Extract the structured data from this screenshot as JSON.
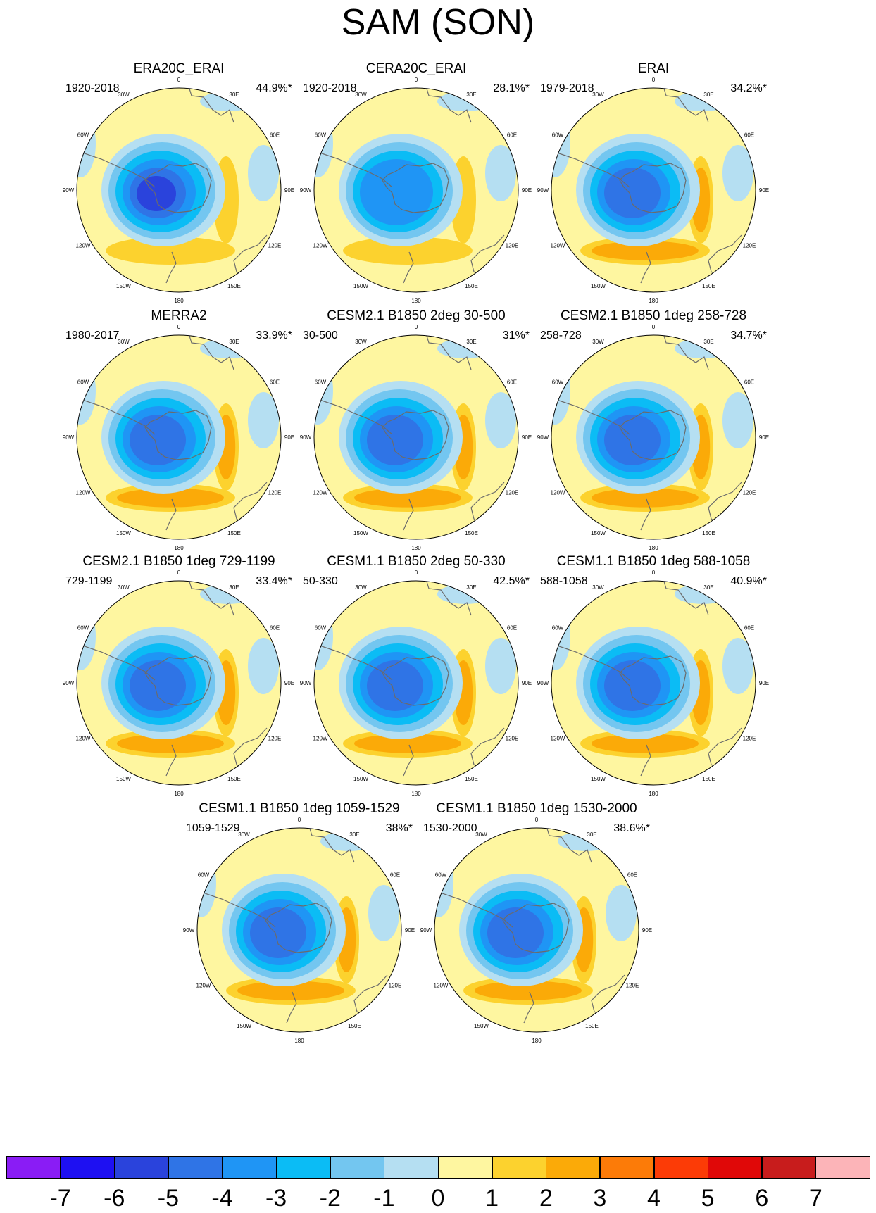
{
  "figure": {
    "title": "SAM (SON)"
  },
  "longitude_labels": [
    "0",
    "30E",
    "60E",
    "90E",
    "120E",
    "150E",
    "180",
    "150W",
    "120W",
    "90W",
    "60W",
    "30W"
  ],
  "panels": [
    {
      "title": "ERA20C_ERAI",
      "range": "1920-2018",
      "percent": "44.9%*",
      "min_level": -6,
      "max_level": 1
    },
    {
      "title": "CERA20C_ERAI",
      "range": "1920-2018",
      "percent": "28.1%*",
      "min_level": -4,
      "max_level": 1
    },
    {
      "title": "ERAI",
      "range": "1979-2018",
      "percent": "34.2%*",
      "min_level": -5,
      "max_level": 2
    },
    {
      "title": "MERRA2",
      "range": "1980-2017",
      "percent": "33.9%*",
      "min_level": -5,
      "max_level": 2
    },
    {
      "title": "CESM2.1 B1850 2deg 30-500",
      "range": "30-500",
      "percent": "31%*",
      "min_level": -5,
      "max_level": 2
    },
    {
      "title": "CESM2.1 B1850 1deg 258-728",
      "range": "258-728",
      "percent": "34.7%*",
      "min_level": -5,
      "max_level": 2
    },
    {
      "title": "CESM2.1 B1850 1deg 729-1199",
      "range": "729-1199",
      "percent": "33.4%*",
      "min_level": -5,
      "max_level": 2
    },
    {
      "title": "CESM1.1 B1850 2deg 50-330",
      "range": "50-330",
      "percent": "42.5%*",
      "min_level": -5,
      "max_level": 2
    },
    {
      "title": "CESM1.1 B1850 1deg 588-1058",
      "range": "588-1058",
      "percent": "40.9%*",
      "min_level": -5,
      "max_level": 2
    },
    {
      "title": "CESM1.1 B1850 1deg 1059-1529",
      "range": "1059-1529",
      "percent": "38%*",
      "min_level": -5,
      "max_level": 2
    },
    {
      "title": "CESM1.1 B1850 1deg 1530-2000",
      "range": "1530-2000",
      "percent": "38.6%*",
      "min_level": -5,
      "max_level": 2
    }
  ],
  "colorbar": {
    "labels": [
      "-7",
      "-6",
      "-5",
      "-4",
      "-3",
      "-2",
      "-1",
      "0",
      "1",
      "2",
      "3",
      "4",
      "5",
      "6",
      "7"
    ],
    "colors": [
      "#8a1cf5",
      "#1e10f2",
      "#2a43dc",
      "#2f74e6",
      "#1f95f5",
      "#0bbcf5",
      "#73c6f0",
      "#b5dff2",
      "#fef6a0",
      "#fcd22e",
      "#fbaa08",
      "#fc7b08",
      "#fc3b06",
      "#e00808",
      "#c81c1c",
      "#fcb4b8"
    ]
  }
}
